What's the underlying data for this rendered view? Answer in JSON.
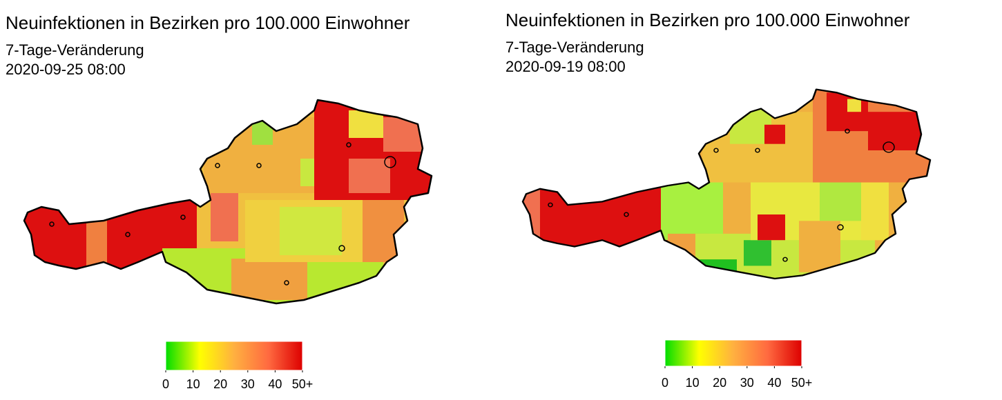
{
  "maps": [
    {
      "title": "Neuinfektionen in Bezirken pro 100.000 Einwohner",
      "subtitle": "7-Tage-Veränderung",
      "date": "2020-09-25 08:00",
      "colorbar": {
        "range": [
          0,
          50
        ],
        "ticks": [
          0,
          10,
          20,
          30,
          40,
          {
            "value": 50,
            "label": "50+"
          }
        ],
        "colors": [
          "#00dd00",
          "#ffff00",
          "#ffb040",
          "#ff6a40",
          "#dd0000"
        ]
      }
    },
    {
      "title": "Neuinfektionen in Bezirken pro 100.000 Einwohner",
      "subtitle": "7-Tage-Veränderung",
      "date": "2020-09-19 08:00",
      "colorbar": {
        "range": [
          0,
          50
        ],
        "ticks": [
          0,
          10,
          20,
          30,
          40,
          {
            "value": 50,
            "label": "50+"
          }
        ],
        "colors": [
          "#00dd00",
          "#ffff00",
          "#ffb040",
          "#ff6a40",
          "#dd0000"
        ]
      }
    }
  ]
}
